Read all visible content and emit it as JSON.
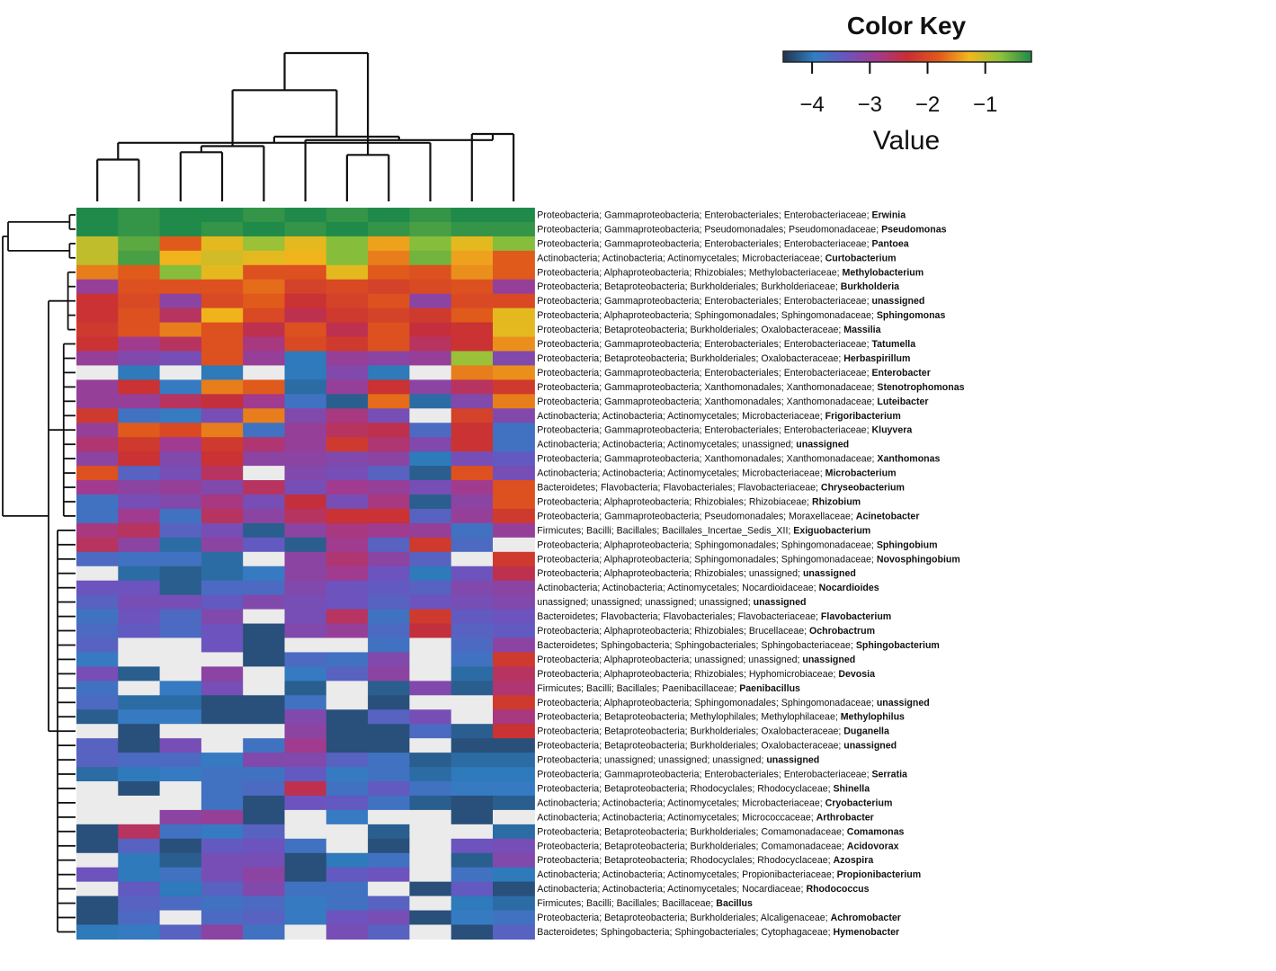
{
  "chart_data": {
    "type": "heatmap",
    "title": "",
    "n_columns": 11,
    "row_labels": [
      {
        "taxonomy": "Proteobacteria; Gammaproteobacteria; Enterobacteriales; Enterobacteriaceae; ",
        "genus": "Erwinia"
      },
      {
        "taxonomy": "Proteobacteria; Gammaproteobacteria; Pseudomonadales; Pseudomonadaceae; ",
        "genus": "Pseudomonas"
      },
      {
        "taxonomy": "Proteobacteria; Gammaproteobacteria; Enterobacteriales; Enterobacteriaceae; ",
        "genus": "Pantoea"
      },
      {
        "taxonomy": "Actinobacteria; Actinobacteria; Actinomycetales; Microbacteriaceae; ",
        "genus": "Curtobacterium"
      },
      {
        "taxonomy": "Proteobacteria; Alphaproteobacteria; Rhizobiales; Methylobacteriaceae; ",
        "genus": "Methylobacterium"
      },
      {
        "taxonomy": "Proteobacteria; Betaproteobacteria; Burkholderiales; Burkholderiaceae; ",
        "genus": "Burkholderia"
      },
      {
        "taxonomy": "Proteobacteria; Gammaproteobacteria; Enterobacteriales; Enterobacteriaceae; ",
        "genus": "unassigned"
      },
      {
        "taxonomy": "Proteobacteria; Alphaproteobacteria; Sphingomonadales; Sphingomonadaceae; ",
        "genus": "Sphingomonas"
      },
      {
        "taxonomy": "Proteobacteria; Betaproteobacteria; Burkholderiales; Oxalobacteraceae; ",
        "genus": "Massilia"
      },
      {
        "taxonomy": "Proteobacteria; Gammaproteobacteria; Enterobacteriales; Enterobacteriaceae; ",
        "genus": "Tatumella"
      },
      {
        "taxonomy": "Proteobacteria; Betaproteobacteria; Burkholderiales; Oxalobacteraceae; ",
        "genus": "Herbaspirillum"
      },
      {
        "taxonomy": "Proteobacteria; Gammaproteobacteria; Enterobacteriales; Enterobacteriaceae; ",
        "genus": "Enterobacter"
      },
      {
        "taxonomy": "Proteobacteria; Gammaproteobacteria; Xanthomonadales; Xanthomonadaceae; ",
        "genus": "Stenotrophomonas"
      },
      {
        "taxonomy": "Proteobacteria; Gammaproteobacteria; Xanthomonadales; Xanthomonadaceae; ",
        "genus": "Luteibacter"
      },
      {
        "taxonomy": "Actinobacteria; Actinobacteria; Actinomycetales; Microbacteriaceae; ",
        "genus": "Frigoribacterium"
      },
      {
        "taxonomy": "Proteobacteria; Gammaproteobacteria; Enterobacteriales; Enterobacteriaceae; ",
        "genus": "Kluyvera"
      },
      {
        "taxonomy": "Actinobacteria; Actinobacteria; Actinomycetales; unassigned; ",
        "genus": "unassigned"
      },
      {
        "taxonomy": "Proteobacteria; Gammaproteobacteria; Xanthomonadales; Xanthomonadaceae; ",
        "genus": "Xanthomonas"
      },
      {
        "taxonomy": "Actinobacteria; Actinobacteria; Actinomycetales; Microbacteriaceae; ",
        "genus": "Microbacterium"
      },
      {
        "taxonomy": "Bacteroidetes; Flavobacteria; Flavobacteriales; Flavobacteriaceae; ",
        "genus": "Chryseobacterium"
      },
      {
        "taxonomy": "Proteobacteria; Alphaproteobacteria; Rhizobiales; Rhizobiaceae; ",
        "genus": "Rhizobium"
      },
      {
        "taxonomy": "Proteobacteria; Gammaproteobacteria; Pseudomonadales; Moraxellaceae; ",
        "genus": "Acinetobacter"
      },
      {
        "taxonomy": "Firmicutes; Bacilli; Bacillales; Bacillales_Incertae_Sedis_XII; ",
        "genus": "Exiguobacterium"
      },
      {
        "taxonomy": "Proteobacteria; Alphaproteobacteria; Sphingomonadales; Sphingomonadaceae; ",
        "genus": "Sphingobium"
      },
      {
        "taxonomy": "Proteobacteria; Alphaproteobacteria; Sphingomonadales; Sphingomonadaceae; ",
        "genus": "Novosphingobium"
      },
      {
        "taxonomy": "Proteobacteria; Alphaproteobacteria; Rhizobiales; unassigned; ",
        "genus": "unassigned"
      },
      {
        "taxonomy": "Actinobacteria; Actinobacteria; Actinomycetales; Nocardioidaceae; ",
        "genus": "Nocardioides"
      },
      {
        "taxonomy": "unassigned; unassigned; unassigned; unassigned; ",
        "genus": "unassigned"
      },
      {
        "taxonomy": "Bacteroidetes; Flavobacteria; Flavobacteriales; Flavobacteriaceae; ",
        "genus": "Flavobacterium"
      },
      {
        "taxonomy": "Proteobacteria; Alphaproteobacteria; Rhizobiales; Brucellaceae; ",
        "genus": "Ochrobactrum"
      },
      {
        "taxonomy": "Bacteroidetes; Sphingobacteria; Sphingobacteriales; Sphingobacteriaceae; ",
        "genus": "Sphingobacterium"
      },
      {
        "taxonomy": "Proteobacteria; Alphaproteobacteria; unassigned; unassigned; ",
        "genus": "unassigned"
      },
      {
        "taxonomy": "Proteobacteria; Alphaproteobacteria; Rhizobiales; Hyphomicrobiaceae; ",
        "genus": "Devosia"
      },
      {
        "taxonomy": "Firmicutes; Bacilli; Bacillales; Paenibacillaceae; ",
        "genus": "Paenibacillus"
      },
      {
        "taxonomy": "Proteobacteria; Alphaproteobacteria; Sphingomonadales; Sphingomonadaceae; ",
        "genus": "unassigned"
      },
      {
        "taxonomy": "Proteobacteria; Betaproteobacteria; Methylophilales; Methylophilaceae; ",
        "genus": "Methylophilus"
      },
      {
        "taxonomy": "Proteobacteria; Betaproteobacteria; Burkholderiales; Oxalobacteraceae; ",
        "genus": "Duganella"
      },
      {
        "taxonomy": "Proteobacteria; Betaproteobacteria; Burkholderiales; Oxalobacteraceae; ",
        "genus": "unassigned"
      },
      {
        "taxonomy": "Proteobacteria; unassigned; unassigned; unassigned; ",
        "genus": "unassigned"
      },
      {
        "taxonomy": "Proteobacteria; Gammaproteobacteria; Enterobacteriales; Enterobacteriaceae; ",
        "genus": "Serratia"
      },
      {
        "taxonomy": "Proteobacteria; Betaproteobacteria; Rhodocyclales; Rhodocyclaceae; ",
        "genus": "Shinella"
      },
      {
        "taxonomy": "Actinobacteria; Actinobacteria; Actinomycetales; Microbacteriaceae; ",
        "genus": "Cryobacterium"
      },
      {
        "taxonomy": "Actinobacteria; Actinobacteria; Actinomycetales; Micrococcaceae; ",
        "genus": "Arthrobacter"
      },
      {
        "taxonomy": "Proteobacteria; Betaproteobacteria; Burkholderiales; Comamonadaceae; ",
        "genus": "Comamonas"
      },
      {
        "taxonomy": "Proteobacteria; Betaproteobacteria; Burkholderiales; Comamonadaceae; ",
        "genus": "Acidovorax"
      },
      {
        "taxonomy": "Proteobacteria; Betaproteobacteria; Rhodocyclales; Rhodocyclaceae; ",
        "genus": "Azospira"
      },
      {
        "taxonomy": "Actinobacteria; Actinobacteria; Actinomycetales; Propionibacteriaceae; ",
        "genus": "Propionibacterium"
      },
      {
        "taxonomy": "Actinobacteria; Actinobacteria; Actinomycetales; Nocardiaceae; ",
        "genus": "Rhodococcus"
      },
      {
        "taxonomy": "Firmicutes; Bacilli; Bacillales; Bacillaceae; ",
        "genus": "Bacillus"
      },
      {
        "taxonomy": "Proteobacteria; Betaproteobacteria; Burkholderiales; Alcaligenaceae; ",
        "genus": "Achromobacter"
      },
      {
        "taxonomy": "Bacteroidetes; Sphingobacteria; Sphingobacteriales; Cytophagaceae; ",
        "genus": "Hymenobacter"
      }
    ],
    "values": [
      [
        -0.2,
        -0.3,
        -0.2,
        -0.2,
        -0.3,
        -0.2,
        -0.3,
        -0.2,
        -0.3,
        -0.2,
        -0.2
      ],
      [
        -0.2,
        -0.3,
        -0.2,
        -0.3,
        -0.2,
        -0.3,
        -0.2,
        -0.3,
        -0.4,
        -0.3,
        -0.3
      ],
      [
        -1.0,
        -0.5,
        -1.8,
        -1.2,
        -0.8,
        -1.2,
        -0.7,
        -1.4,
        -0.7,
        -1.2,
        -0.7
      ],
      [
        -1.0,
        -0.4,
        -1.3,
        -1.1,
        -1.2,
        -1.3,
        -0.7,
        -1.6,
        -0.6,
        -1.4,
        -1.8
      ],
      [
        -1.6,
        -1.8,
        -0.7,
        -1.2,
        -1.9,
        -1.9,
        -1.2,
        -1.8,
        -1.9,
        -1.5,
        -1.8
      ],
      [
        -3.0,
        -1.9,
        -1.9,
        -1.9,
        -1.7,
        -2.1,
        -2.0,
        -2.1,
        -2.0,
        -1.9,
        -3.0
      ],
      [
        -2.3,
        -2.0,
        -3.1,
        -2.0,
        -1.8,
        -2.3,
        -2.1,
        -1.9,
        -3.1,
        -2.0,
        -2.0
      ],
      [
        -2.3,
        -1.9,
        -2.6,
        -1.3,
        -2.0,
        -2.5,
        -2.2,
        -2.1,
        -2.2,
        -1.8,
        -1.2
      ],
      [
        -2.2,
        -1.9,
        -1.6,
        -1.9,
        -2.5,
        -1.9,
        -2.5,
        -1.9,
        -2.4,
        -2.3,
        -1.2
      ],
      [
        -2.3,
        -2.9,
        -2.6,
        -1.9,
        -2.8,
        -2.0,
        -2.2,
        -1.9,
        -2.6,
        -2.3,
        -1.5
      ],
      [
        -3.0,
        -3.2,
        -3.3,
        -1.9,
        -3.0,
        -4.0,
        -3.0,
        -3.1,
        -3.0,
        -0.8,
        -3.2
      ],
      [
        -5.0,
        -4.0,
        -5.0,
        -4.0,
        -5.0,
        -4.0,
        -3.2,
        -4.0,
        -5.0,
        -1.6,
        -1.5
      ],
      [
        -3.0,
        -2.3,
        -3.9,
        -1.6,
        -1.8,
        -4.1,
        -3.0,
        -2.3,
        -3.1,
        -2.6,
        -2.2
      ],
      [
        -3.0,
        -3.0,
        -2.6,
        -2.4,
        -2.9,
        -3.8,
        -4.2,
        -1.7,
        -4.1,
        -3.2,
        -1.6
      ],
      [
        -2.2,
        -3.8,
        -3.9,
        -3.3,
        -1.6,
        -3.2,
        -2.8,
        -3.3,
        -5.0,
        -2.1,
        -3.2
      ],
      [
        -3.0,
        -1.8,
        -2.0,
        -1.6,
        -3.8,
        -3.0,
        -2.6,
        -2.5,
        -3.7,
        -2.3,
        -3.8
      ],
      [
        -2.7,
        -2.2,
        -2.9,
        -2.2,
        -2.7,
        -3.0,
        -2.2,
        -2.7,
        -3.2,
        -2.3,
        -3.8
      ],
      [
        -3.1,
        -2.3,
        -3.2,
        -2.3,
        -3.1,
        -3.1,
        -3.2,
        -3.1,
        -4.0,
        -3.3,
        -3.5
      ],
      [
        -1.9,
        -3.6,
        -3.3,
        -2.6,
        -5.0,
        -3.2,
        -3.3,
        -3.6,
        -4.2,
        -1.9,
        -3.3
      ],
      [
        -2.9,
        -3.1,
        -3.0,
        -3.2,
        -2.6,
        -3.3,
        -2.9,
        -3.0,
        -3.3,
        -2.9,
        -1.9
      ],
      [
        -3.8,
        -3.3,
        -3.2,
        -2.8,
        -3.3,
        -2.4,
        -3.3,
        -2.8,
        -4.2,
        -3.1,
        -1.9
      ],
      [
        -3.8,
        -2.9,
        -3.8,
        -2.6,
        -3.1,
        -2.6,
        -2.3,
        -2.3,
        -3.6,
        -3.0,
        -2.2
      ],
      [
        -2.8,
        -2.6,
        -3.6,
        -3.3,
        -4.2,
        -3.1,
        -2.8,
        -2.9,
        -3.0,
        -3.8,
        -3.0
      ],
      [
        -2.6,
        -3.1,
        -4.1,
        -3.1,
        -3.5,
        -4.2,
        -2.9,
        -3.6,
        -2.2,
        -3.7,
        -5.0
      ],
      [
        -3.7,
        -3.8,
        -3.8,
        -4.1,
        -5.0,
        -3.1,
        -2.7,
        -3.1,
        -3.6,
        -5.0,
        -2.2
      ],
      [
        -5.0,
        -4.1,
        -4.2,
        -4.1,
        -3.9,
        -3.1,
        -2.9,
        -3.4,
        -4.0,
        -3.4,
        -2.5
      ],
      [
        -3.4,
        -3.4,
        -4.2,
        -3.7,
        -3.7,
        -3.2,
        -3.4,
        -3.5,
        -3.6,
        -3.2,
        -3.1
      ],
      [
        -3.6,
        -3.3,
        -3.3,
        -3.5,
        -3.2,
        -3.3,
        -3.4,
        -3.6,
        -3.4,
        -3.3,
        -3.2
      ],
      [
        -3.8,
        -3.4,
        -3.7,
        -3.2,
        -5.0,
        -3.3,
        -2.6,
        -3.8,
        -2.2,
        -3.5,
        -3.4
      ],
      [
        -3.7,
        -3.5,
        -3.7,
        -3.4,
        -4.3,
        -3.2,
        -3.0,
        -3.7,
        -2.4,
        -3.6,
        -3.5
      ],
      [
        -3.6,
        -5.0,
        -5.0,
        -3.4,
        -4.3,
        -5.0,
        -5.0,
        -3.8,
        -5.0,
        -3.7,
        -3.1
      ],
      [
        -3.9,
        -5.0,
        -5.0,
        -5.0,
        -4.3,
        -3.7,
        -3.8,
        -3.2,
        -5.0,
        -3.8,
        -2.2
      ],
      [
        -3.3,
        -4.2,
        -5.0,
        -3.1,
        -5.0,
        -3.9,
        -3.6,
        -3.1,
        -5.0,
        -4.1,
        -2.6
      ],
      [
        -3.8,
        -5.0,
        -3.9,
        -3.3,
        -5.0,
        -4.2,
        -5.0,
        -4.2,
        -3.2,
        -4.2,
        -2.7
      ],
      [
        -3.7,
        -4.1,
        -4.1,
        -4.3,
        -4.3,
        -3.8,
        -5.0,
        -4.3,
        -5.0,
        -5.0,
        -2.2
      ],
      [
        -4.2,
        -3.9,
        -3.9,
        -4.3,
        -4.3,
        -3.2,
        -4.3,
        -3.6,
        -3.3,
        -5.0,
        -2.8
      ],
      [
        -5.0,
        -4.3,
        -5.0,
        -5.0,
        -5.0,
        -3.1,
        -4.3,
        -4.3,
        -3.7,
        -4.2,
        -2.3
      ],
      [
        -3.6,
        -4.3,
        -3.3,
        -5.0,
        -3.8,
        -2.9,
        -4.3,
        -4.3,
        -5.0,
        -4.3,
        -4.3
      ],
      [
        -3.6,
        -3.7,
        -3.7,
        -3.9,
        -3.2,
        -3.2,
        -3.6,
        -3.8,
        -4.2,
        -4.1,
        -4.1
      ],
      [
        -4.1,
        -4.0,
        -3.9,
        -3.8,
        -3.8,
        -3.5,
        -3.9,
        -3.8,
        -4.1,
        -4.0,
        -4.0
      ],
      [
        -5.0,
        -4.3,
        -5.0,
        -3.8,
        -3.7,
        -2.5,
        -3.8,
        -3.5,
        -3.8,
        -3.9,
        -3.9
      ],
      [
        -5.0,
        -5.0,
        -5.0,
        -3.8,
        -4.3,
        -3.4,
        -3.5,
        -3.8,
        -4.2,
        -4.3,
        -4.2
      ],
      [
        -5.0,
        -5.0,
        -3.1,
        -3.0,
        -4.3,
        -5.0,
        -3.9,
        -5.0,
        -5.0,
        -4.3,
        -5.0
      ],
      [
        -4.3,
        -2.6,
        -3.8,
        -3.9,
        -3.6,
        -5.0,
        -5.0,
        -4.2,
        -5.0,
        -5.0,
        -4.1
      ],
      [
        -4.3,
        -3.6,
        -4.3,
        -3.5,
        -3.4,
        -3.8,
        -5.0,
        -4.3,
        -5.0,
        -3.4,
        -3.3
      ],
      [
        -5.0,
        -4.0,
        -4.2,
        -3.3,
        -3.3,
        -4.3,
        -4.0,
        -3.8,
        -5.0,
        -4.2,
        -3.2
      ],
      [
        -3.4,
        -4.0,
        -3.8,
        -3.3,
        -3.1,
        -4.3,
        -3.5,
        -3.4,
        -5.0,
        -3.8,
        -4.0
      ],
      [
        -5.0,
        -3.5,
        -4.0,
        -3.6,
        -3.2,
        -3.8,
        -3.8,
        -5.0,
        -4.3,
        -3.5,
        -4.3
      ],
      [
        -4.3,
        -3.6,
        -3.7,
        -3.8,
        -3.7,
        -3.9,
        -3.8,
        -3.6,
        -5.0,
        -4.0,
        -4.1
      ],
      [
        -4.3,
        -3.7,
        -5.0,
        -3.7,
        -3.6,
        -3.9,
        -3.4,
        -3.3,
        -4.3,
        -3.9,
        -3.8
      ],
      [
        -4.0,
        -3.9,
        -3.6,
        -3.1,
        -3.8,
        -5.0,
        -3.3,
        -3.6,
        -5.0,
        -4.3,
        -3.6
      ]
    ],
    "missing_value_color": "#ebebeb",
    "color_key": {
      "title": "Color Key",
      "xlabel": "Value",
      "range": [
        -4.5,
        -0.2
      ],
      "ticks": [
        -4,
        -3,
        -2,
        -1
      ],
      "tick_labels": [
        "−4",
        "−3",
        "−2",
        "−1"
      ],
      "colors": [
        "#24344f",
        "#2f7fc2",
        "#6a54c0",
        "#a23a8f",
        "#c82e35",
        "#e0581b",
        "#f2b71c",
        "#8ec23a",
        "#1f8a4a"
      ]
    },
    "column_dendrogram": {
      "merges": [
        [
          0,
          1
        ],
        [
          2,
          3
        ],
        [
          6,
          7
        ],
        [
          9,
          10
        ],
        [
          12,
          4
        ],
        [
          14,
          5
        ],
        [
          11,
          8
        ],
        [
          16,
          17
        ],
        [
          15,
          18
        ],
        [
          13,
          19
        ]
      ],
      "heights": [
        0.62,
        0.73,
        0.69,
        1.0,
        0.82,
        0.91,
        0.87,
        0.96,
        1.65,
        2.2
      ]
    },
    "row_dendrogram": {
      "groups": [
        [
          0,
          1
        ],
        [
          2,
          3
        ],
        [
          4,
          8
        ],
        [
          9,
          21
        ],
        [
          22,
          50
        ]
      ],
      "top_groups": [
        [
          0,
          3
        ],
        [
          4,
          50
        ]
      ]
    }
  }
}
